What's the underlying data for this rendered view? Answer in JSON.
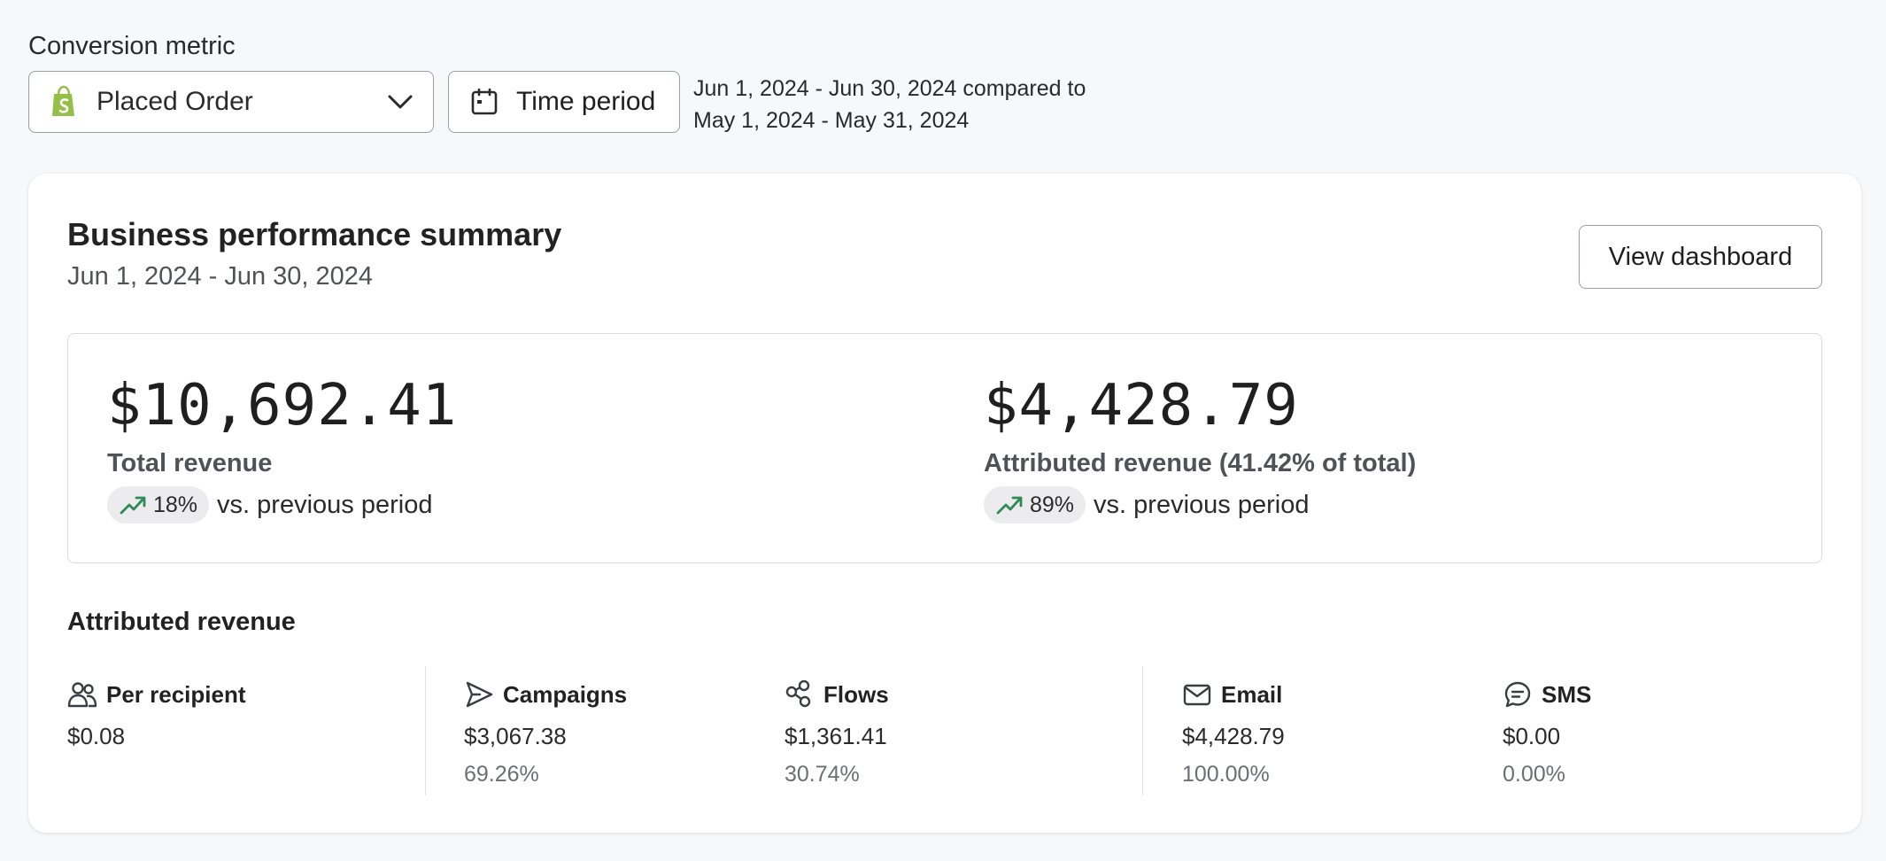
{
  "filters": {
    "metric_label": "Conversion metric",
    "metric_value": "Placed Order",
    "time_period_label": "Time period",
    "compare_line1": "Jun 1, 2024 - Jun 30, 2024 compared to",
    "compare_line2": "May 1, 2024 - May 31, 2024"
  },
  "summary": {
    "title": "Business performance summary",
    "date_range": "Jun 1, 2024 - Jun 30, 2024",
    "view_dashboard_label": "View dashboard",
    "total": {
      "value": "$10,692.41",
      "label": "Total revenue",
      "change": "18%",
      "change_suffix": "vs. previous period"
    },
    "attributed": {
      "value": "$4,428.79",
      "label": "Attributed revenue (41.42% of total)",
      "change": "89%",
      "change_suffix": "vs. previous period"
    }
  },
  "attributed_revenue": {
    "title": "Attributed revenue",
    "columns": [
      {
        "label": "Per recipient",
        "value": "$0.08",
        "percent": ""
      },
      {
        "label": "Campaigns",
        "value": "$3,067.38",
        "percent": "69.26%"
      },
      {
        "label": "Flows",
        "value": "$1,361.41",
        "percent": "30.74%"
      },
      {
        "label": "Email",
        "value": "$4,428.79",
        "percent": "100.00%"
      },
      {
        "label": "SMS",
        "value": "$0.00",
        "percent": "0.00%"
      }
    ]
  },
  "colors": {
    "trend_up": "#2e8b57",
    "shopify_green": "#95bf47",
    "icon_stroke": "#3a3d42"
  },
  "icons": [
    "shopify-icon",
    "chevron-down-icon",
    "calendar-icon",
    "trend-up-icon",
    "users-icon",
    "send-icon",
    "flows-icon",
    "mail-icon",
    "chat-icon"
  ]
}
